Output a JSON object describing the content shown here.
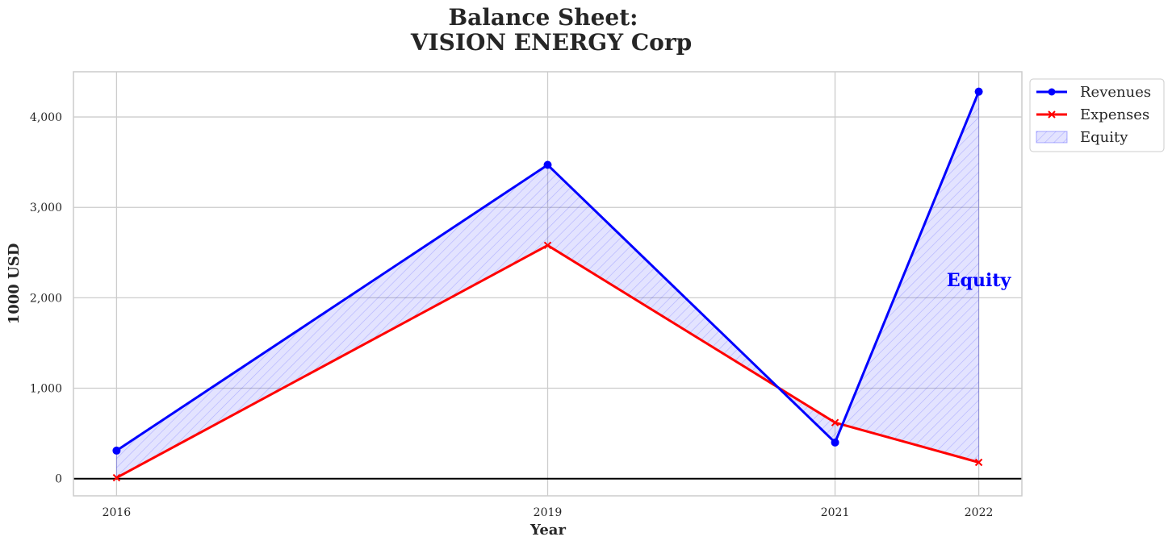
{
  "chart_data": {
    "type": "line",
    "title_line1": "Balance Sheet:",
    "title_line2": "VISION ENERGY Corp",
    "xlabel": "Year",
    "ylabel": "1000 USD",
    "x": [
      2016,
      2019,
      2021,
      2022
    ],
    "x_tick_labels": [
      "2016",
      "2019",
      "2021",
      "2022"
    ],
    "xlim": [
      2015.7,
      2022.3
    ],
    "ylim": [
      -190,
      4500
    ],
    "y_ticks": [
      0,
      1000,
      2000,
      3000,
      4000
    ],
    "y_tick_labels": [
      "0",
      "1,000",
      "2,000",
      "3,000",
      "4,000"
    ],
    "grid": true,
    "series": [
      {
        "name": "Revenues",
        "values": [
          310,
          3470,
          400,
          4280
        ],
        "color": "#0000ff",
        "marker": "circle"
      },
      {
        "name": "Expenses",
        "values": [
          10,
          2580,
          620,
          180
        ],
        "color": "#ff0000",
        "marker": "x"
      }
    ],
    "fill": {
      "name": "Equity",
      "between": [
        "Revenues",
        "Expenses"
      ],
      "color": "#0000ff",
      "hatch": "////"
    },
    "legend": {
      "position": "outside-top-right",
      "entries": [
        "Revenues",
        "Expenses",
        "Equity"
      ]
    },
    "annotation": {
      "text": "Equity",
      "x": 2022,
      "y": 2200,
      "color": "#0000ff"
    }
  }
}
